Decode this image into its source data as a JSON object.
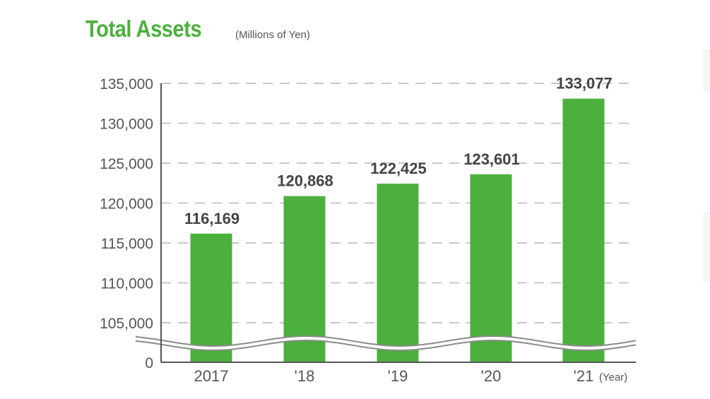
{
  "header": {
    "title": "Total Assets",
    "unit": "(Millions of Yen)"
  },
  "colors": {
    "bar": "#4caf3e",
    "title": "#4caf3e",
    "grid": "#c8c8c8",
    "axis": "#555555",
    "text": "#444444"
  },
  "chart_data": {
    "type": "bar",
    "title": "Total Assets",
    "subtitle": "(Millions of Yen)",
    "xlabel": "(Year)",
    "ylabel": "",
    "categories": [
      "2017",
      "'18",
      "'19",
      "'20",
      "'21"
    ],
    "values": [
      116169,
      120868,
      122425,
      123601,
      133077
    ],
    "value_labels": [
      "116,169",
      "120,868",
      "122,425",
      "123,601",
      "133,077"
    ],
    "y_ticks": [
      "0",
      "105,000",
      "110,000",
      "115,000",
      "120,000",
      "125,000",
      "130,000",
      "135,000"
    ],
    "ylim": [
      0,
      135000
    ],
    "axis_break": "between 0 and 105,000 (wavy double line)",
    "grid": "dashed horizontal",
    "legend": "none"
  }
}
